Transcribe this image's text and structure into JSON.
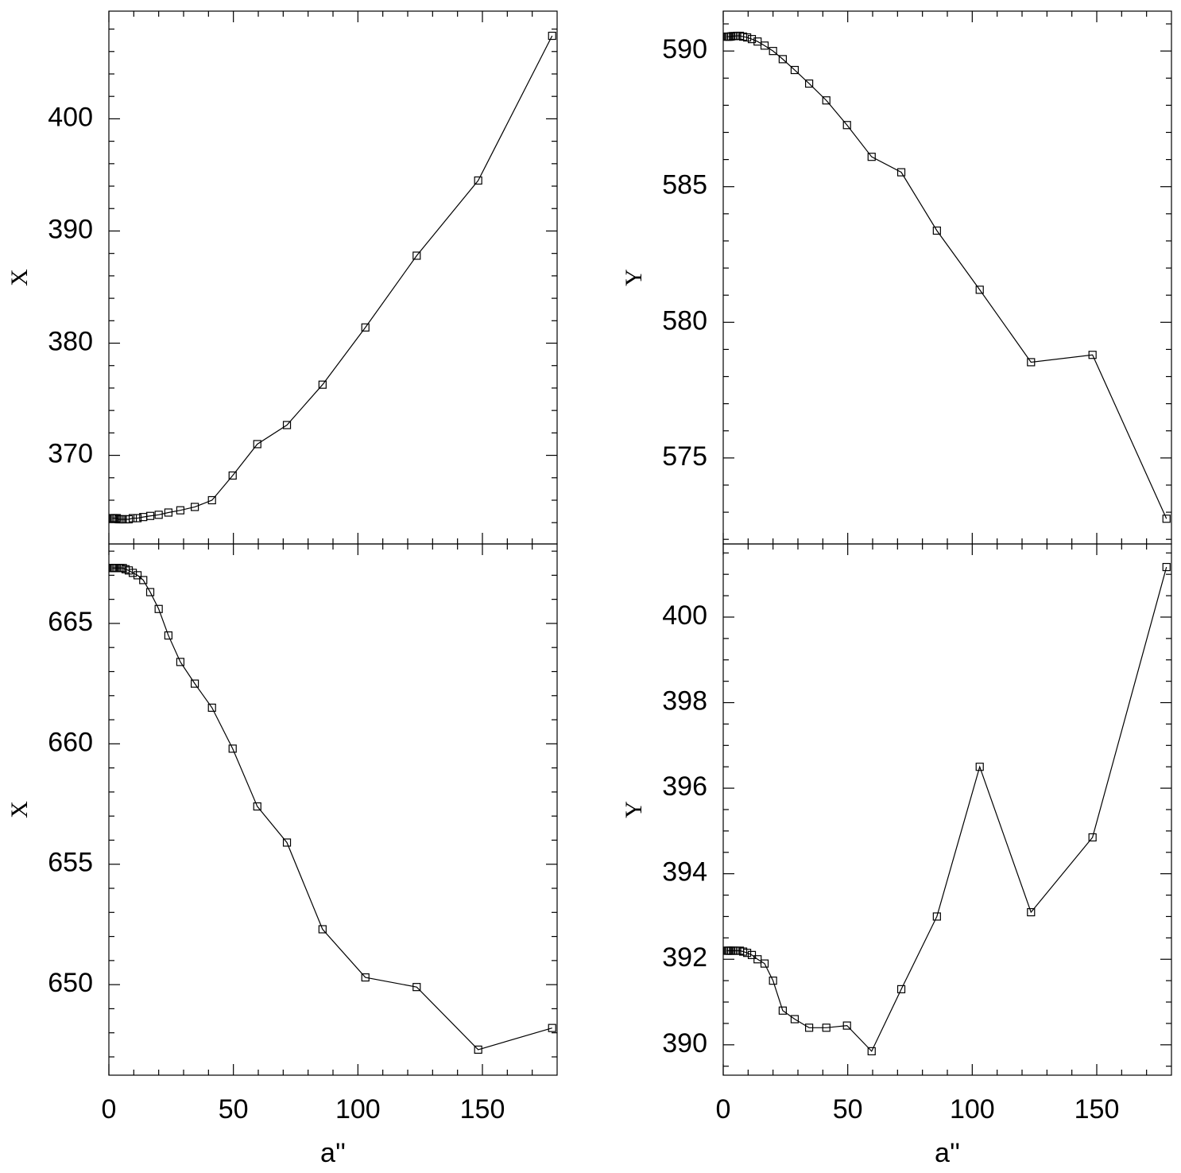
{
  "chart_data": [
    {
      "type": "line",
      "marker": "square",
      "ylabel": "X",
      "show_xticklabels": false,
      "x": [
        1.5,
        1.8,
        2.2,
        2.7,
        3.2,
        3.9,
        4.6,
        5.6,
        6.7,
        8.0,
        9.6,
        11.5,
        13.8,
        16.6,
        20.0,
        23.9,
        28.7,
        34.5,
        41.4,
        49.7,
        59.6,
        71.5,
        85.8,
        103.0,
        123.6,
        148.3,
        178.0
      ],
      "series": [
        {
          "color": "#000000",
          "values": [
            364.4,
            364.4,
            364.4,
            364.4,
            364.4,
            364.3,
            364.3,
            364.3,
            364.3,
            364.3,
            364.4,
            364.4,
            364.5,
            364.6,
            364.7,
            364.9,
            365.1,
            365.4,
            366.0,
            368.2,
            371.0,
            372.7,
            376.3,
            381.4,
            387.8,
            394.5,
            407.4
          ]
        }
      ],
      "xlim": [
        0,
        180
      ],
      "xticks": [
        0,
        50,
        100,
        150
      ],
      "xminorticks": [
        10,
        20,
        30,
        40,
        60,
        70,
        80,
        90,
        110,
        120,
        130,
        140,
        160,
        170
      ],
      "ylim": [
        362.1,
        409.6
      ],
      "yticks": [
        370,
        380,
        390,
        400
      ],
      "yminorticks": [
        364,
        366,
        368,
        372,
        374,
        376,
        378,
        382,
        384,
        386,
        388,
        392,
        394,
        396,
        398,
        402,
        404,
        406,
        408
      ]
    },
    {
      "type": "line",
      "marker": "square",
      "ylabel": "Y",
      "show_xticklabels": false,
      "x": [
        1.5,
        1.8,
        2.2,
        2.7,
        3.2,
        3.9,
        4.6,
        5.6,
        6.7,
        8.0,
        9.6,
        11.5,
        13.8,
        16.6,
        20.0,
        23.9,
        28.7,
        34.5,
        41.4,
        49.7,
        59.6,
        71.5,
        85.8,
        103.0,
        123.6,
        148.3,
        178.0
      ],
      "series": [
        {
          "color": "#000000",
          "values": [
            590.53,
            590.53,
            590.53,
            590.53,
            590.54,
            590.55,
            590.55,
            590.56,
            590.56,
            590.53,
            590.5,
            590.44,
            590.35,
            590.2,
            590.0,
            589.7,
            589.3,
            588.8,
            588.18,
            587.27,
            586.1,
            585.53,
            583.38,
            581.2,
            578.53,
            578.8,
            572.76
          ]
        }
      ],
      "xlim": [
        0,
        180
      ],
      "xticks": [
        0,
        50,
        100,
        150
      ],
      "xminorticks": [
        10,
        20,
        30,
        40,
        60,
        70,
        80,
        90,
        110,
        120,
        130,
        140,
        160,
        170
      ],
      "ylim": [
        571.83,
        591.47
      ],
      "yticks": [
        575,
        580,
        585,
        590
      ],
      "yminorticks": [
        572,
        573,
        574,
        576,
        577,
        578,
        579,
        581,
        582,
        583,
        584,
        586,
        587,
        588,
        589,
        591
      ]
    },
    {
      "type": "line",
      "marker": "square",
      "ylabel": "X",
      "xlabel": "a''",
      "show_xticklabels": true,
      "x": [
        1.5,
        1.8,
        2.2,
        2.7,
        3.2,
        3.9,
        4.6,
        5.6,
        6.7,
        8.0,
        9.6,
        11.5,
        13.8,
        16.6,
        20.0,
        23.9,
        28.7,
        34.5,
        41.4,
        49.7,
        59.6,
        71.5,
        85.8,
        103.0,
        123.6,
        148.3,
        178.0
      ],
      "series": [
        {
          "color": "#000000",
          "values": [
            667.3,
            667.3,
            667.3,
            667.3,
            667.3,
            667.3,
            667.3,
            667.3,
            667.25,
            667.2,
            667.1,
            667.0,
            666.8,
            666.3,
            665.6,
            664.5,
            663.4,
            662.5,
            661.5,
            659.8,
            657.4,
            655.9,
            652.3,
            650.3,
            649.9,
            647.3,
            648.2
          ]
        }
      ],
      "xlim": [
        0,
        180
      ],
      "xticks": [
        0,
        50,
        100,
        150
      ],
      "xminorticks": [
        10,
        20,
        30,
        40,
        60,
        70,
        80,
        90,
        110,
        120,
        130,
        140,
        160,
        170
      ],
      "ylim": [
        646.24,
        668.3
      ],
      "yticks": [
        650,
        655,
        660,
        665
      ],
      "yminorticks": [
        647,
        648,
        649,
        651,
        652,
        653,
        654,
        656,
        657,
        658,
        659,
        661,
        662,
        663,
        664,
        666,
        667,
        668
      ]
    },
    {
      "type": "line",
      "marker": "square",
      "ylabel": "Y",
      "xlabel": "a''",
      "show_xticklabels": true,
      "x": [
        1.5,
        1.8,
        2.2,
        2.7,
        3.2,
        3.9,
        4.6,
        5.6,
        6.7,
        8.0,
        9.6,
        11.5,
        13.8,
        16.6,
        20.0,
        23.9,
        28.7,
        34.5,
        41.4,
        49.7,
        59.6,
        71.5,
        85.8,
        103.0,
        123.6,
        148.3,
        178.0
      ],
      "series": [
        {
          "color": "#000000",
          "values": [
            392.2,
            392.2,
            392.2,
            392.2,
            392.2,
            392.2,
            392.2,
            392.2,
            392.2,
            392.18,
            392.15,
            392.1,
            392.0,
            391.9,
            391.5,
            390.8,
            390.6,
            390.4,
            390.4,
            390.45,
            389.85,
            391.3,
            393.0,
            396.5,
            393.1,
            394.85,
            401.17
          ]
        }
      ],
      "xlim": [
        0,
        180
      ],
      "xticks": [
        0,
        50,
        100,
        150
      ],
      "xminorticks": [
        10,
        20,
        30,
        40,
        60,
        70,
        80,
        90,
        110,
        120,
        130,
        140,
        160,
        170
      ],
      "ylim": [
        389.29,
        401.71
      ],
      "yticks": [
        390,
        392,
        394,
        396,
        398,
        400
      ],
      "yminorticks": [
        389.5,
        390.5,
        391,
        391.5,
        392.5,
        393,
        393.5,
        394.5,
        395,
        395.5,
        396.5,
        397,
        397.5,
        398.5,
        399,
        399.5,
        400.5,
        401,
        401.5
      ]
    }
  ]
}
